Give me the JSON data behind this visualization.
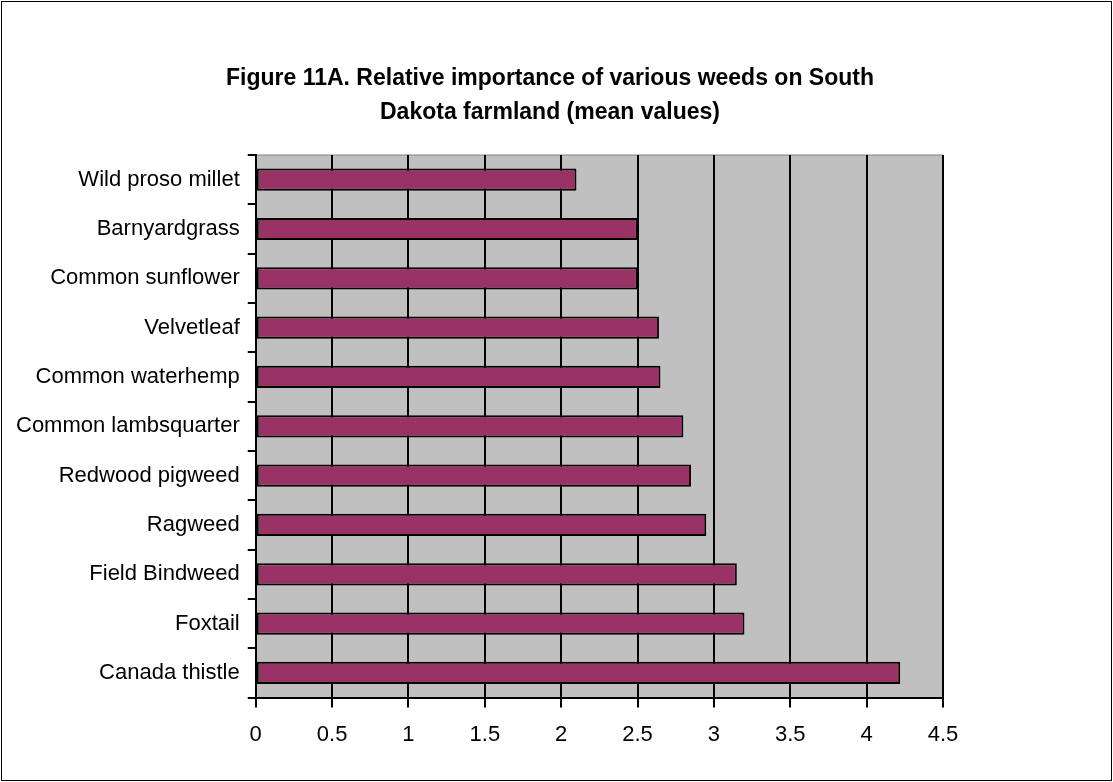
{
  "chart_data": {
    "type": "bar",
    "orientation": "horizontal",
    "title": "Figure 11A. Relative importance of various weeds on South Dakota farmland (mean values)",
    "categories": [
      "Wild proso millet",
      "Barnyardgrass",
      "Common sunflower",
      "Velvetleaf",
      "Common waterhemp",
      "Common lambsquarter",
      "Redwood pigweed",
      "Ragweed",
      "Field Bindweed",
      "Foxtail",
      "Canada thistle"
    ],
    "values": [
      2.1,
      2.5,
      2.5,
      2.64,
      2.65,
      2.8,
      2.85,
      2.95,
      3.15,
      3.2,
      4.22
    ],
    "color": "#993366",
    "xlim": [
      0,
      4.5
    ],
    "xticks": [
      0,
      0.5,
      1,
      1.5,
      2,
      2.5,
      3,
      3.5,
      4,
      4.5
    ],
    "grid": "x",
    "legend": false
  }
}
